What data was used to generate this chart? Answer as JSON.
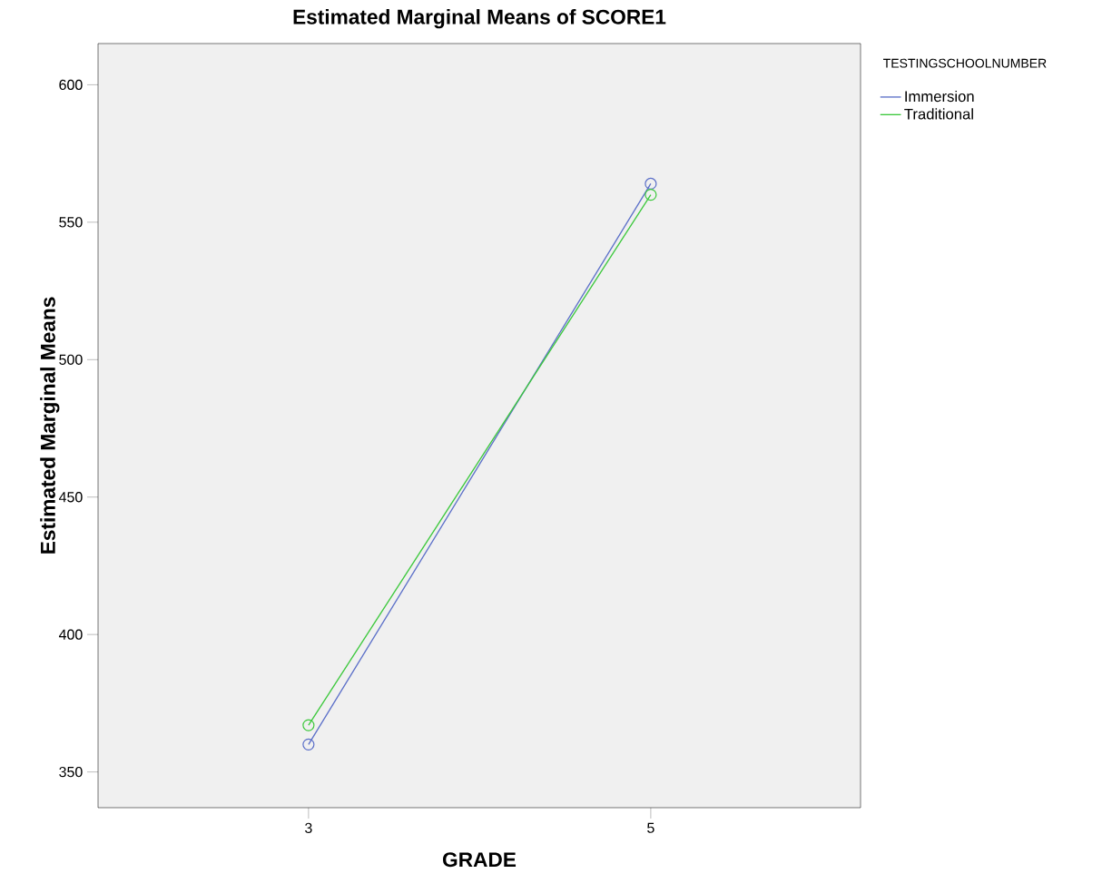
{
  "chart_data": {
    "type": "line",
    "title": "Estimated Marginal Means of SCORE1",
    "xlabel": "GRADE",
    "ylabel": "Estimated Marginal Means",
    "legend_title": "TESTINGSCHOOLNUMBER",
    "categories": [
      "3",
      "5"
    ],
    "series": [
      {
        "name": "Immersion",
        "color": "#5b6fc8",
        "values": [
          360,
          564
        ]
      },
      {
        "name": "Traditional",
        "color": "#3cc83c",
        "values": [
          367,
          560
        ]
      }
    ],
    "ylim": [
      337,
      615
    ],
    "yticks": [
      350,
      400,
      450,
      500,
      550,
      600
    ],
    "grid": false,
    "legend": "right",
    "marker": "circle",
    "line_style": "solid"
  }
}
